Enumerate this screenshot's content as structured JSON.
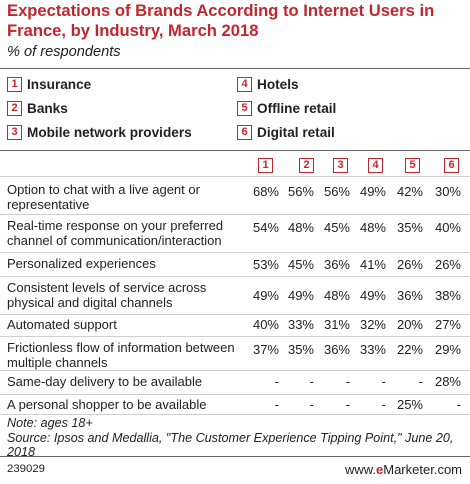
{
  "chart_data": {
    "type": "table",
    "title": "Expectations of Brands According to Internet Users in France, by Industry, March 2018",
    "subtitle": "% of respondents",
    "legend": [
      {
        "number": "1",
        "label": "Insurance"
      },
      {
        "number": "2",
        "label": "Banks"
      },
      {
        "number": "3",
        "label": "Mobile network providers"
      },
      {
        "number": "4",
        "label": "Hotels"
      },
      {
        "number": "5",
        "label": "Offline retail"
      },
      {
        "number": "6",
        "label": "Digital retail"
      }
    ],
    "columns": [
      "1",
      "2",
      "3",
      "4",
      "5",
      "6"
    ],
    "rows": [
      {
        "label": "Option to chat with a live agent or representative",
        "values": [
          "68%",
          "56%",
          "56%",
          "49%",
          "42%",
          "30%"
        ]
      },
      {
        "label": "Real-time response on your preferred channel of communication/interaction",
        "values": [
          "54%",
          "48%",
          "45%",
          "48%",
          "35%",
          "40%"
        ]
      },
      {
        "label": "Personalized experiences",
        "values": [
          "53%",
          "45%",
          "36%",
          "41%",
          "26%",
          "26%"
        ]
      },
      {
        "label": "Consistent levels of service across physical and digital channels",
        "values": [
          "49%",
          "49%",
          "48%",
          "49%",
          "36%",
          "38%"
        ]
      },
      {
        "label": "Automated support",
        "values": [
          "40%",
          "33%",
          "31%",
          "32%",
          "20%",
          "27%"
        ]
      },
      {
        "label": "Frictionless flow of information between multiple channels",
        "values": [
          "37%",
          "35%",
          "36%",
          "33%",
          "22%",
          "29%"
        ]
      },
      {
        "label": "Same-day delivery to be available",
        "values": [
          "-",
          "-",
          "-",
          "-",
          "-",
          "28%"
        ]
      },
      {
        "label": "A personal shopper to be available",
        "values": [
          "-",
          "-",
          "-",
          "-",
          "25%",
          "-"
        ]
      }
    ]
  },
  "note_line": "Note: ages 18+",
  "source_line": "Source: Ipsos and Medallia, \"The Customer Experience Tipping Point,\" June 20, 2018",
  "footer": {
    "chart_id": "239029",
    "brand_prefix": "www.",
    "brand_e": "e",
    "brand_rest": "Marketer",
    "brand_suffix": ".com"
  }
}
